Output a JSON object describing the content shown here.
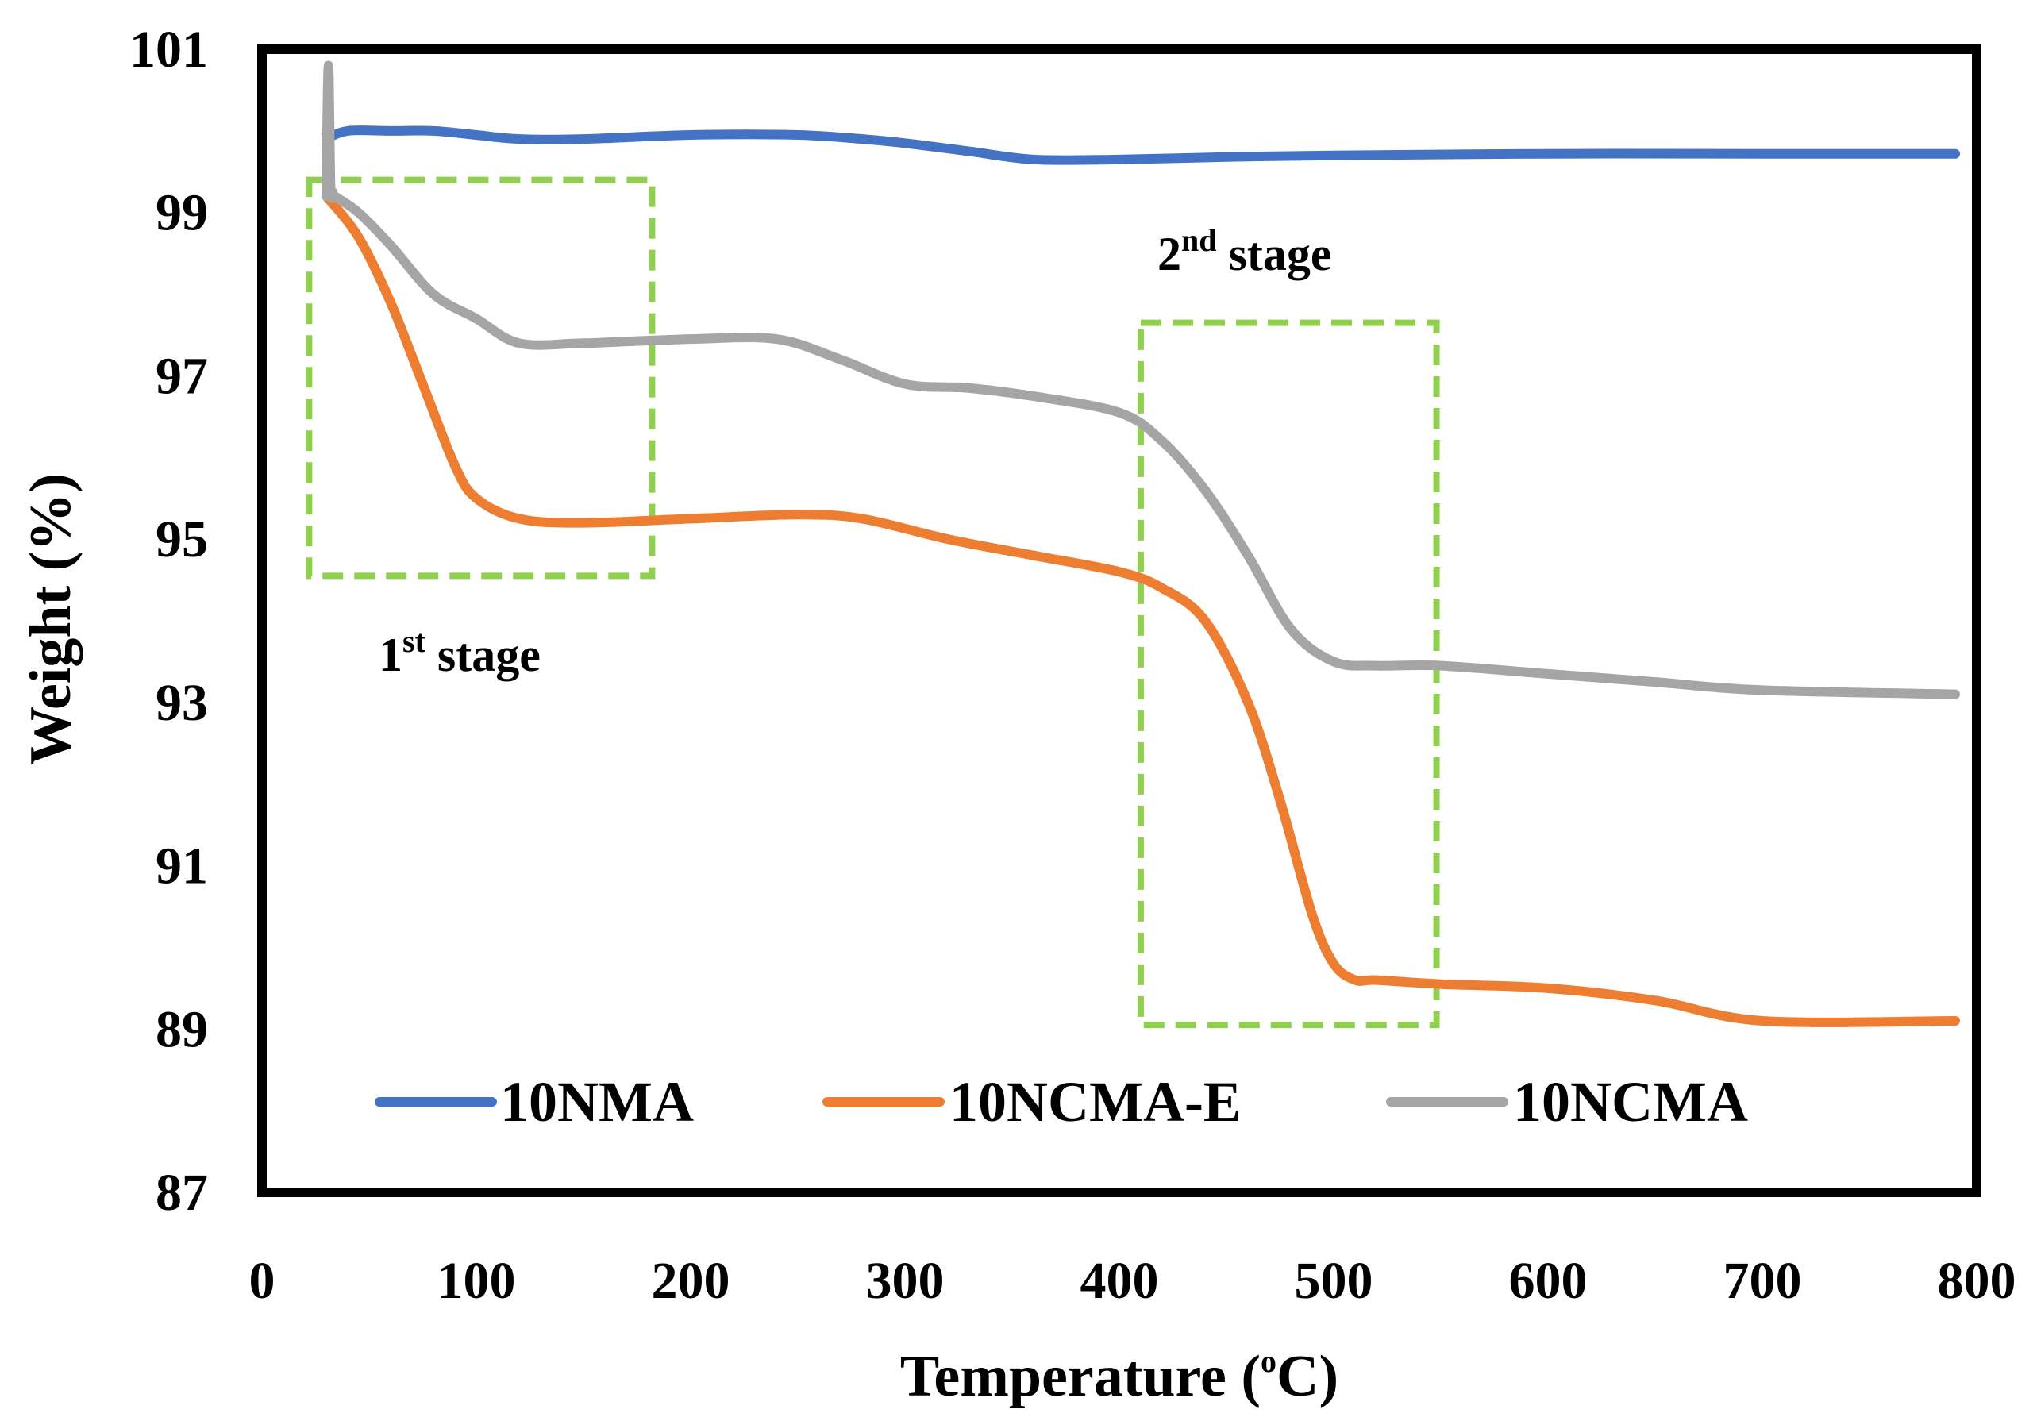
{
  "chart_data": {
    "type": "line",
    "title": "",
    "xlabel": "Temperature (",
    "xlabel_unit_sup": "o",
    "xlabel_unit": "C)",
    "ylabel": "Weight (%)",
    "xlim": [
      0,
      800
    ],
    "ylim": [
      87,
      101
    ],
    "xticks": [
      "0",
      "100",
      "200",
      "300",
      "400",
      "500",
      "600",
      "700",
      "800"
    ],
    "yticks": [
      "87",
      "89",
      "91",
      "93",
      "95",
      "97",
      "99",
      "101"
    ],
    "grid": false,
    "legend_position": "bottom",
    "series": [
      {
        "name": "10NMA",
        "color": "#4472C4",
        "x": [
          30,
          40,
          60,
          80,
          100,
          120,
          150,
          200,
          250,
          280,
          300,
          330,
          360,
          400,
          450,
          500,
          600,
          700,
          790
        ],
        "y": [
          99.9,
          100.0,
          100.0,
          100.0,
          99.95,
          99.9,
          99.9,
          99.95,
          99.95,
          99.9,
          99.85,
          99.75,
          99.65,
          99.65,
          99.68,
          99.7,
          99.72,
          99.72,
          99.72
        ]
      },
      {
        "name": "10NCMA-E",
        "color": "#ED7D31",
        "x": [
          30,
          45,
          60,
          75,
          90,
          100,
          120,
          150,
          200,
          250,
          280,
          320,
          360,
          400,
          420,
          440,
          460,
          475,
          490,
          500,
          510,
          520,
          550,
          600,
          650,
          700,
          790
        ],
        "y": [
          99.2,
          98.7,
          97.9,
          96.9,
          95.9,
          95.5,
          95.25,
          95.2,
          95.25,
          95.3,
          95.25,
          95.0,
          94.8,
          94.6,
          94.4,
          94.0,
          93.0,
          91.8,
          90.4,
          89.8,
          89.6,
          89.6,
          89.55,
          89.5,
          89.35,
          89.1,
          89.1
        ]
      },
      {
        "name": "10NCMA",
        "color": "#A5A5A5",
        "x": [
          30,
          31,
          32,
          33,
          34,
          45,
          60,
          80,
          100,
          120,
          150,
          200,
          240,
          270,
          300,
          330,
          360,
          400,
          420,
          440,
          460,
          480,
          500,
          520,
          550,
          600,
          650,
          700,
          790
        ],
        "y": [
          99.2,
          100.8,
          99.3,
          99.25,
          99.2,
          99.0,
          98.6,
          98.0,
          97.7,
          97.4,
          97.4,
          97.45,
          97.45,
          97.2,
          96.9,
          96.85,
          96.75,
          96.55,
          96.2,
          95.6,
          94.8,
          93.9,
          93.5,
          93.45,
          93.45,
          93.35,
          93.25,
          93.15,
          93.1
        ]
      }
    ],
    "annotations": [
      {
        "type": "dashed_box",
        "label_main": "1",
        "label_sup": "st",
        "label_rest": " stage",
        "color": "#8FD14F",
        "x_range": [
          22,
          182
        ],
        "y_range": [
          94.55,
          99.4
        ]
      },
      {
        "type": "dashed_box",
        "label_main": "2",
        "label_sup": "nd",
        "label_rest": " stage",
        "color": "#8FD14F",
        "x_range": [
          410,
          548
        ],
        "y_range": [
          89.05,
          97.65
        ]
      }
    ]
  }
}
